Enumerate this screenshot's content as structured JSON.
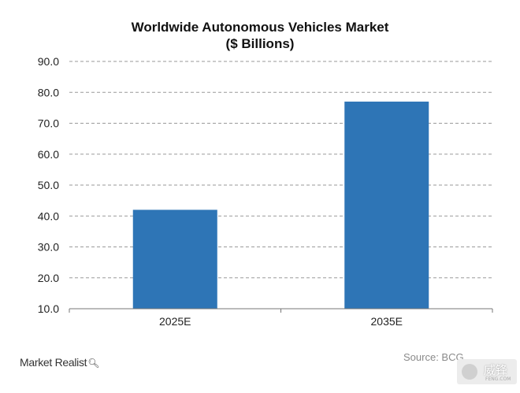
{
  "chart_data": {
    "type": "bar",
    "title": "Worldwide Autonomous Vehicles Market",
    "subtitle": "($ Billions)",
    "categories": [
      "2025E",
      "2035E"
    ],
    "values": [
      42.0,
      77.0
    ],
    "xlabel": "",
    "ylabel": "",
    "ylim": [
      10.0,
      90.0
    ],
    "yticks": [
      "10.0",
      "20.0",
      "30.0",
      "40.0",
      "50.0",
      "60.0",
      "70.0",
      "80.0",
      "90.0"
    ],
    "grid": true,
    "bar_color": "#2e75b6"
  },
  "source": "Source: BCG",
  "brand": "Market Realist",
  "brand_icon": "magnifier-icon",
  "watermark": {
    "text": "威锋",
    "sub": "FENG.COM"
  }
}
